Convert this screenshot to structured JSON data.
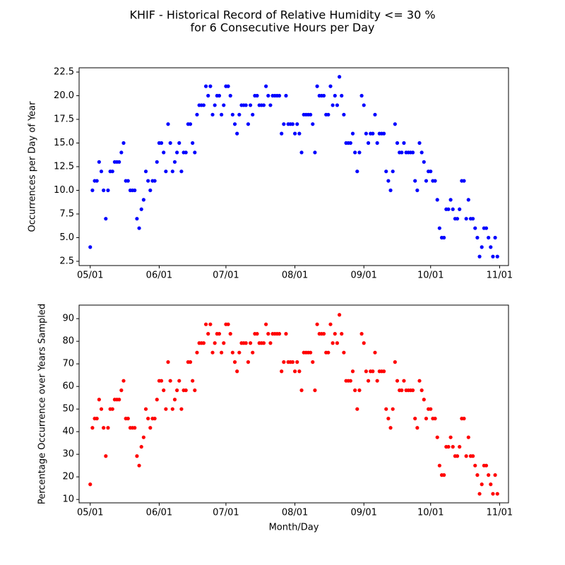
{
  "title": [
    "KHIF - Historical Record of Relative Humidity <= 30 %",
    "for 6 Consecutive Hours per Day"
  ],
  "chart_data": [
    {
      "type": "scatter",
      "ylabel": "Occurrences per Day of Year",
      "x": [
        "05/01",
        "05/02",
        "05/03",
        "05/04",
        "05/05",
        "05/06",
        "05/07",
        "05/08",
        "05/09",
        "05/10",
        "05/11",
        "05/12",
        "05/13",
        "05/14",
        "05/15",
        "05/16",
        "05/17",
        "05/18",
        "05/19",
        "05/20",
        "05/21",
        "05/22",
        "05/23",
        "05/24",
        "05/25",
        "05/26",
        "05/27",
        "05/28",
        "05/29",
        "05/30",
        "05/31",
        "06/01",
        "06/02",
        "06/03",
        "06/04",
        "06/05",
        "06/06",
        "06/07",
        "06/08",
        "06/09",
        "06/10",
        "06/11",
        "06/12",
        "06/13",
        "06/14",
        "06/15",
        "06/16",
        "06/17",
        "06/18",
        "06/19",
        "06/20",
        "06/21",
        "06/22",
        "06/23",
        "06/24",
        "06/25",
        "06/26",
        "06/27",
        "06/28",
        "06/29",
        "06/30",
        "07/01",
        "07/02",
        "07/03",
        "07/04",
        "07/05",
        "07/06",
        "07/07",
        "07/08",
        "07/09",
        "07/10",
        "07/11",
        "07/12",
        "07/13",
        "07/14",
        "07/15",
        "07/16",
        "07/17",
        "07/18",
        "07/19",
        "07/20",
        "07/21",
        "07/22",
        "07/23",
        "07/24",
        "07/25",
        "07/26",
        "07/27",
        "07/28",
        "07/29",
        "07/30",
        "07/31",
        "08/01",
        "08/02",
        "08/03",
        "08/04",
        "08/05",
        "08/06",
        "08/07",
        "08/08",
        "08/09",
        "08/10",
        "08/11",
        "08/12",
        "08/13",
        "08/14",
        "08/15",
        "08/16",
        "08/17",
        "08/18",
        "08/19",
        "08/20",
        "08/21",
        "08/22",
        "08/23",
        "08/24",
        "08/25",
        "08/26",
        "08/27",
        "08/28",
        "08/29",
        "08/30",
        "08/31",
        "09/01",
        "09/02",
        "09/03",
        "09/04",
        "09/05",
        "09/06",
        "09/07",
        "09/08",
        "09/09",
        "09/10",
        "09/11",
        "09/12",
        "09/13",
        "09/14",
        "09/15",
        "09/16",
        "09/17",
        "09/18",
        "09/19",
        "09/20",
        "09/21",
        "09/22",
        "09/23",
        "09/24",
        "09/25",
        "09/26",
        "09/27",
        "09/28",
        "09/29",
        "09/30",
        "10/01",
        "10/02",
        "10/03",
        "10/04",
        "10/05",
        "10/06",
        "10/07",
        "10/08",
        "10/09",
        "10/10",
        "10/11",
        "10/12",
        "10/13",
        "10/14",
        "10/15",
        "10/16",
        "10/17",
        "10/18",
        "10/19",
        "10/20",
        "10/21",
        "10/22",
        "10/23",
        "10/24",
        "10/25",
        "10/26",
        "10/27",
        "10/28",
        "10/29",
        "10/30",
        "10/31"
      ],
      "series": [
        {
          "color": "#0000ff",
          "values": [
            4,
            10,
            11,
            11,
            13,
            12,
            10,
            7,
            10,
            12,
            12,
            13,
            13,
            13,
            14,
            15,
            11,
            11,
            10,
            10,
            10,
            7,
            6,
            8,
            9,
            12,
            11,
            10,
            11,
            11,
            13,
            15,
            15,
            14,
            12,
            17,
            15,
            12,
            13,
            14,
            15,
            12,
            14,
            14,
            17,
            17,
            15,
            14,
            18,
            19,
            19,
            19,
            21,
            20,
            21,
            18,
            19,
            20,
            20,
            18,
            19,
            21,
            21,
            20,
            18,
            17,
            16,
            18,
            19,
            19,
            19,
            17,
            19,
            18,
            20,
            20,
            19,
            19,
            19,
            21,
            20,
            19,
            20,
            20,
            20,
            20,
            16,
            17,
            20,
            17,
            17,
            17,
            16,
            17,
            16,
            14,
            18,
            18,
            18,
            18,
            17,
            14,
            21,
            20,
            20,
            20,
            18,
            18,
            21,
            19,
            20,
            19,
            22,
            20,
            18,
            15,
            15,
            15,
            16,
            14,
            12,
            14,
            20,
            19,
            16,
            15,
            16,
            16,
            18,
            15,
            16,
            16,
            16,
            12,
            11,
            10,
            12,
            17,
            15,
            14,
            14,
            15,
            14,
            14,
            14,
            14,
            11,
            10,
            15,
            14,
            13,
            11,
            12,
            12,
            11,
            11,
            9,
            6,
            5,
            5,
            8,
            8,
            9,
            8,
            7,
            7,
            8,
            11,
            11,
            7,
            9,
            7,
            7,
            6,
            5,
            3,
            4,
            6,
            6,
            5,
            4,
            3,
            5,
            3
          ]
        }
      ],
      "xlim": [
        "04/26",
        "11/05"
      ],
      "xticks": [
        "05/01",
        "06/01",
        "07/01",
        "08/01",
        "09/01",
        "10/01",
        "11/01"
      ],
      "ylim": [
        2.05,
        22.95
      ],
      "yticks": [
        2.5,
        {
          "value": 5,
          "label": "5.0"
        },
        7.5,
        {
          "value": 10,
          "label": "10.0"
        },
        12.5,
        {
          "value": 15,
          "label": "15.0"
        },
        17.5,
        {
          "value": 20,
          "label": "20.0"
        },
        22.5
      ]
    },
    {
      "type": "scatter",
      "ylabel": "Percentage Occurrence over Years Sampled",
      "xlabel": "Month/Day",
      "x": [
        "05/01",
        "05/02",
        "05/03",
        "05/04",
        "05/05",
        "05/06",
        "05/07",
        "05/08",
        "05/09",
        "05/10",
        "05/11",
        "05/12",
        "05/13",
        "05/14",
        "05/15",
        "05/16",
        "05/17",
        "05/18",
        "05/19",
        "05/20",
        "05/21",
        "05/22",
        "05/23",
        "05/24",
        "05/25",
        "05/26",
        "05/27",
        "05/28",
        "05/29",
        "05/30",
        "05/31",
        "06/01",
        "06/02",
        "06/03",
        "06/04",
        "06/05",
        "06/06",
        "06/07",
        "06/08",
        "06/09",
        "06/10",
        "06/11",
        "06/12",
        "06/13",
        "06/14",
        "06/15",
        "06/16",
        "06/17",
        "06/18",
        "06/19",
        "06/20",
        "06/21",
        "06/22",
        "06/23",
        "06/24",
        "06/25",
        "06/26",
        "06/27",
        "06/28",
        "06/29",
        "06/30",
        "07/01",
        "07/02",
        "07/03",
        "07/04",
        "07/05",
        "07/06",
        "07/07",
        "07/08",
        "07/09",
        "07/10",
        "07/11",
        "07/12",
        "07/13",
        "07/14",
        "07/15",
        "07/16",
        "07/17",
        "07/18",
        "07/19",
        "07/20",
        "07/21",
        "07/22",
        "07/23",
        "07/24",
        "07/25",
        "07/26",
        "07/27",
        "07/28",
        "07/29",
        "07/30",
        "07/31",
        "08/01",
        "08/02",
        "08/03",
        "08/04",
        "08/05",
        "08/06",
        "08/07",
        "08/08",
        "08/09",
        "08/10",
        "08/11",
        "08/12",
        "08/13",
        "08/14",
        "08/15",
        "08/16",
        "08/17",
        "08/18",
        "08/19",
        "08/20",
        "08/21",
        "08/22",
        "08/23",
        "08/24",
        "08/25",
        "08/26",
        "08/27",
        "08/28",
        "08/29",
        "08/30",
        "08/31",
        "09/01",
        "09/02",
        "09/03",
        "09/04",
        "09/05",
        "09/06",
        "09/07",
        "09/08",
        "09/09",
        "09/10",
        "09/11",
        "09/12",
        "09/13",
        "09/14",
        "09/15",
        "09/16",
        "09/17",
        "09/18",
        "09/19",
        "09/20",
        "09/21",
        "09/22",
        "09/23",
        "09/24",
        "09/25",
        "09/26",
        "09/27",
        "09/28",
        "09/29",
        "09/30",
        "10/01",
        "10/02",
        "10/03",
        "10/04",
        "10/05",
        "10/06",
        "10/07",
        "10/08",
        "10/09",
        "10/10",
        "10/11",
        "10/12",
        "10/13",
        "10/14",
        "10/15",
        "10/16",
        "10/17",
        "10/18",
        "10/19",
        "10/20",
        "10/21",
        "10/22",
        "10/23",
        "10/24",
        "10/25",
        "10/26",
        "10/27",
        "10/28",
        "10/29",
        "10/30",
        "10/31"
      ],
      "series": [
        {
          "color": "#ff0000",
          "values": [
            16.7,
            41.7,
            45.8,
            45.8,
            54.2,
            50,
            41.7,
            29.2,
            41.7,
            50,
            50,
            54.2,
            54.2,
            54.2,
            58.3,
            62.5,
            45.8,
            45.8,
            41.7,
            41.7,
            41.7,
            29.2,
            25,
            33.3,
            37.5,
            50,
            45.8,
            41.7,
            45.8,
            45.8,
            54.2,
            62.5,
            62.5,
            58.3,
            50,
            70.8,
            62.5,
            50,
            54.2,
            58.3,
            62.5,
            50,
            58.3,
            58.3,
            70.8,
            70.8,
            62.5,
            58.3,
            75,
            79.2,
            79.2,
            79.2,
            87.5,
            83.3,
            87.5,
            75,
            79.2,
            83.3,
            83.3,
            75,
            79.2,
            87.5,
            87.5,
            83.3,
            75,
            70.8,
            66.7,
            75,
            79.2,
            79.2,
            79.2,
            70.8,
            79.2,
            75,
            83.3,
            83.3,
            79.2,
            79.2,
            79.2,
            87.5,
            83.3,
            79.2,
            83.3,
            83.3,
            83.3,
            83.3,
            66.7,
            70.8,
            83.3,
            70.8,
            70.8,
            70.8,
            66.7,
            70.8,
            66.7,
            58.3,
            75,
            75,
            75,
            75,
            70.8,
            58.3,
            87.5,
            83.3,
            83.3,
            83.3,
            75,
            75,
            87.5,
            79.2,
            83.3,
            79.2,
            91.7,
            83.3,
            75,
            62.5,
            62.5,
            62.5,
            66.7,
            58.3,
            50,
            58.3,
            83.3,
            79.2,
            66.7,
            62.5,
            66.7,
            66.7,
            75,
            62.5,
            66.7,
            66.7,
            66.7,
            50,
            45.8,
            41.7,
            50,
            70.8,
            62.5,
            58.3,
            58.3,
            62.5,
            58.3,
            58.3,
            58.3,
            58.3,
            45.8,
            41.7,
            62.5,
            58.3,
            54.2,
            45.8,
            50,
            50,
            45.8,
            45.8,
            37.5,
            25,
            20.8,
            20.8,
            33.3,
            33.3,
            37.5,
            33.3,
            29.2,
            29.2,
            33.3,
            45.8,
            45.8,
            29.2,
            37.5,
            29.2,
            29.2,
            25,
            20.8,
            12.5,
            16.7,
            25,
            25,
            20.8,
            16.7,
            12.5,
            20.8,
            12.5
          ]
        }
      ],
      "xlim": [
        "04/26",
        "11/05"
      ],
      "xticks": [
        "05/01",
        "06/01",
        "07/01",
        "08/01",
        "09/01",
        "10/01",
        "11/01"
      ],
      "ylim": [
        8.5,
        96
      ],
      "yticks": [
        10,
        20,
        30,
        40,
        50,
        60,
        70,
        80,
        90
      ]
    }
  ]
}
